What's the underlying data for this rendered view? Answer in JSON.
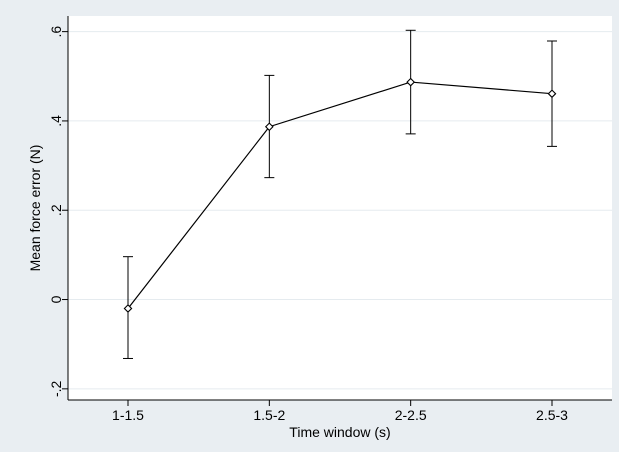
{
  "chart_data": {
    "type": "line",
    "xlabel": "Time window (s)",
    "ylabel": "Mean force error (N)",
    "categories": [
      "1-1.5",
      "1.5-2",
      "2-2.5",
      "2.5-3"
    ],
    "yticks": [
      {
        "value": -0.2,
        "label": "-.2"
      },
      {
        "value": 0,
        "label": "0"
      },
      {
        "value": 0.2,
        "label": ".2"
      },
      {
        "value": 0.4,
        "label": ".4"
      },
      {
        "value": 0.6,
        "label": ".6"
      }
    ],
    "ylim": [
      -0.225,
      0.635
    ],
    "grid": true,
    "series": [
      {
        "values": [
          -0.02,
          0.387,
          0.487,
          0.461
        ],
        "ci_lower": [
          -0.132,
          0.273,
          0.371,
          0.343
        ],
        "ci_upper": [
          0.096,
          0.502,
          0.603,
          0.579
        ]
      }
    ],
    "colors": {
      "outer_background": "#e9eef2",
      "plot_background": "#ffffff",
      "grid": "#e5ebef",
      "line": "#000000"
    }
  }
}
